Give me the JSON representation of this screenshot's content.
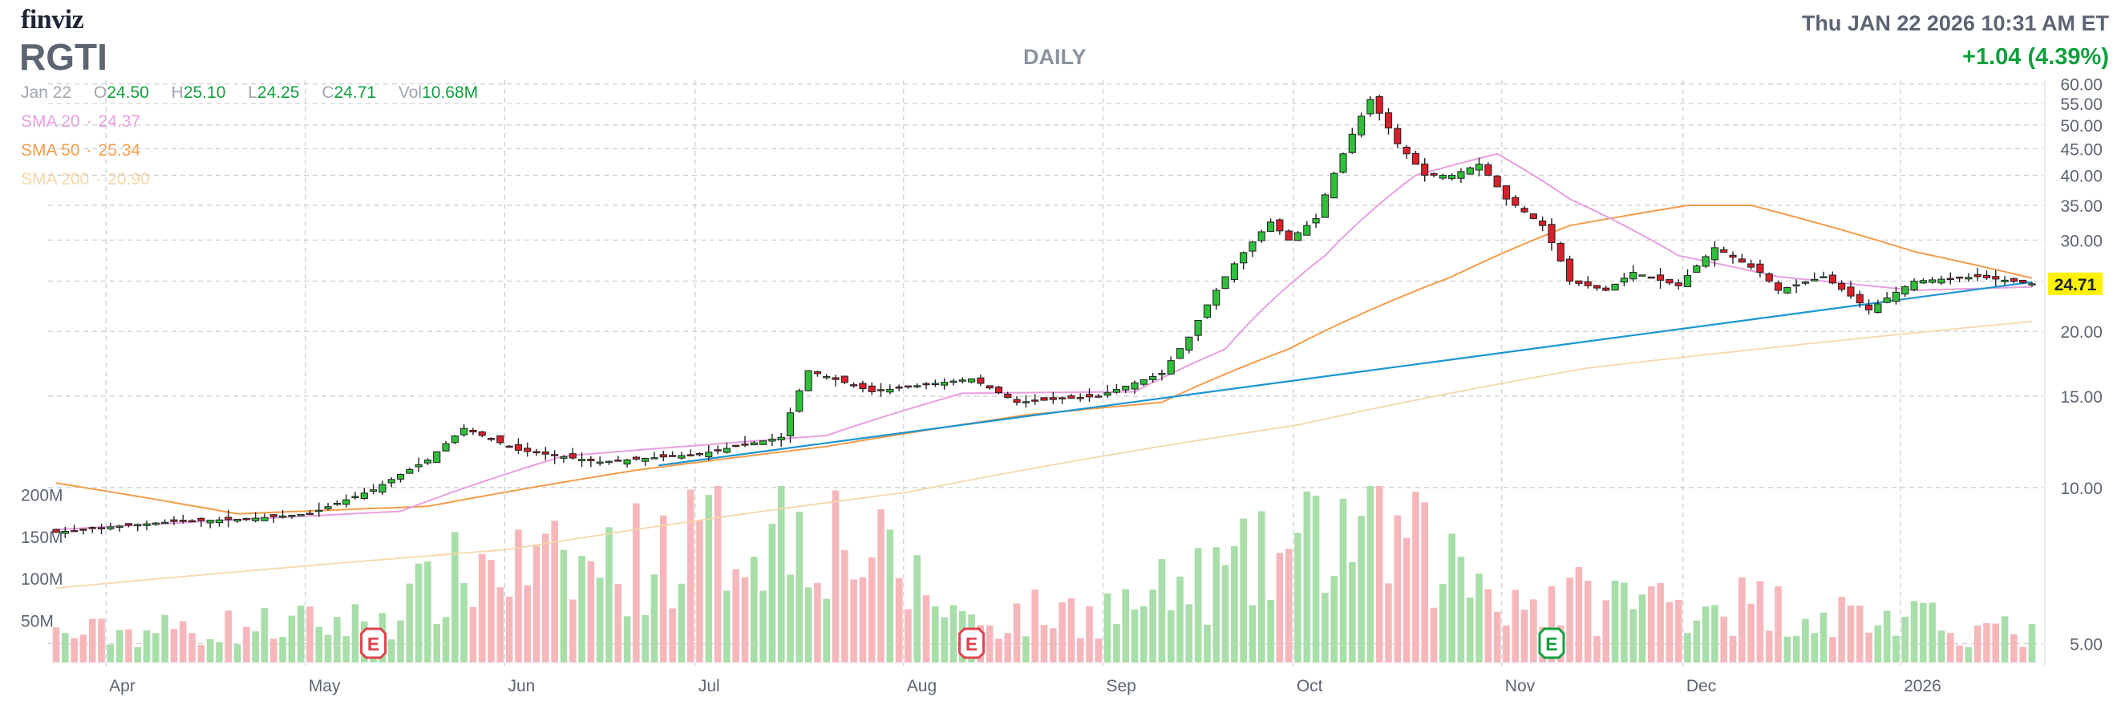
{
  "header": {
    "logo": "finviz",
    "ticker": "RGTI",
    "period": "DAILY",
    "datetime": "Thu JAN 22 2026 10:31 AM ET",
    "change": "+1.04 (4.39%)"
  },
  "quote": {
    "date": "Jan 22",
    "open_label": "O",
    "open": "24.50",
    "high_label": "H",
    "high": "25.10",
    "low_label": "L",
    "low": "24.25",
    "close_label": "C",
    "close": "24.71",
    "volume_label": "Vol",
    "volume": "10.68M"
  },
  "indicators": [
    {
      "name": "SMA 20",
      "value": "24.37",
      "color": "#e89fdf"
    },
    {
      "name": "SMA 50",
      "value": "25.34",
      "color": "#f39c4a"
    },
    {
      "name": "SMA 200",
      "value": "20.90",
      "color": "#f6d7a8"
    }
  ],
  "events": [
    {
      "label": "E",
      "date": "2025-05-12",
      "color": "#e0414c"
    },
    {
      "label": "E",
      "date": "2025-08-12",
      "color": "#e0414c"
    },
    {
      "label": "E",
      "date": "2025-11-10",
      "color": "#119f3e"
    }
  ],
  "chart_data": {
    "type": "candlestick",
    "scale": "log",
    "ylim": [
      4.6,
      61
    ],
    "y_ticks": [
      "60.00",
      "55.00",
      "50.00",
      "45.00",
      "40.00",
      "35.00",
      "30.00",
      "25.00",
      "20.00",
      "15.00",
      "10.00",
      "5.00"
    ],
    "volume_ticks": [
      "200M",
      "150M",
      "100M",
      "50M"
    ],
    "x_ticks": [
      "Apr",
      "May",
      "Jun",
      "Jul",
      "Aug",
      "Sep",
      "Oct",
      "Nov",
      "Dec",
      "2026"
    ],
    "last_price": "24.71",
    "colors": {
      "up": "#2fbf3a",
      "down": "#d7202a",
      "vol_up": "#a8dea9",
      "vol_down": "#f6b7bb",
      "trendline": "#1b95d1",
      "price_tag": "#fff200"
    },
    "close_anchors": [
      [
        "2025-03-24",
        8.2
      ],
      [
        "2025-04-01",
        8.4
      ],
      [
        "2025-04-10",
        8.6
      ],
      [
        "2025-04-22",
        8.7
      ],
      [
        "2025-05-01",
        8.9
      ],
      [
        "2025-05-12",
        9.9
      ],
      [
        "2025-05-20",
        11.3
      ],
      [
        "2025-05-26",
        13.0
      ],
      [
        "2025-06-03",
        11.8
      ],
      [
        "2025-06-16",
        11.2
      ],
      [
        "2025-07-01",
        11.6
      ],
      [
        "2025-07-14",
        12.5
      ],
      [
        "2025-07-17",
        16.8
      ],
      [
        "2025-07-28",
        15.3
      ],
      [
        "2025-08-05",
        15.8
      ],
      [
        "2025-08-12",
        16.2
      ],
      [
        "2025-08-19",
        14.6
      ],
      [
        "2025-09-01",
        15.0
      ],
      [
        "2025-09-10",
        16.6
      ],
      [
        "2025-09-15",
        19.5
      ],
      [
        "2025-09-22",
        27.0
      ],
      [
        "2025-09-26",
        32.5
      ],
      [
        "2025-09-30",
        30.0
      ],
      [
        "2025-10-03",
        33.0
      ],
      [
        "2025-10-08",
        44.0
      ],
      [
        "2025-10-13",
        56.0
      ],
      [
        "2025-10-16",
        46.0
      ],
      [
        "2025-10-21",
        40.0
      ],
      [
        "2025-10-24",
        40.0
      ],
      [
        "2025-10-29",
        42.0
      ],
      [
        "2025-11-03",
        36.0
      ],
      [
        "2025-11-07",
        32.0
      ],
      [
        "2025-11-12",
        25.0
      ],
      [
        "2025-11-18",
        24.0
      ],
      [
        "2025-11-21",
        26.0
      ],
      [
        "2025-11-28",
        24.5
      ],
      [
        "2025-12-04",
        29.0
      ],
      [
        "2025-12-11",
        26.0
      ],
      [
        "2025-12-15",
        24.0
      ],
      [
        "2025-12-22",
        25.5
      ],
      [
        "2025-12-29",
        22.0
      ],
      [
        "2026-01-05",
        25.0
      ],
      [
        "2026-01-14",
        25.5
      ],
      [
        "2026-01-22",
        24.71
      ]
    ],
    "volume_anchors": [
      [
        "2025-03-24",
        40
      ],
      [
        "2025-05-12",
        60
      ],
      [
        "2025-05-28",
        140
      ],
      [
        "2025-06-11",
        130
      ],
      [
        "2025-07-17",
        210
      ],
      [
        "2025-08-12",
        60
      ],
      [
        "2025-09-04",
        80
      ],
      [
        "2025-09-25",
        140
      ],
      [
        "2025-10-10",
        200
      ],
      [
        "2025-10-15",
        180
      ],
      [
        "2025-11-05",
        90
      ],
      [
        "2025-12-03",
        90
      ],
      [
        "2026-01-22",
        40
      ]
    ],
    "sma20_anchors": [
      [
        "2025-03-24",
        8.3
      ],
      [
        "2025-05-15",
        9.0
      ],
      [
        "2025-06-10",
        11.5
      ],
      [
        "2025-07-20",
        12.6
      ],
      [
        "2025-08-10",
        15.2
      ],
      [
        "2025-09-05",
        15.3
      ],
      [
        "2025-09-20",
        18.5
      ],
      [
        "2025-10-05",
        28.0
      ],
      [
        "2025-10-20",
        40.0
      ],
      [
        "2025-10-31",
        44.0
      ],
      [
        "2025-11-12",
        36.0
      ],
      [
        "2025-11-28",
        28.0
      ],
      [
        "2025-12-15",
        25.5
      ],
      [
        "2026-01-05",
        24.0
      ],
      [
        "2026-01-22",
        24.37
      ]
    ],
    "sma50_anchors": [
      [
        "2025-03-24",
        10.2
      ],
      [
        "2025-04-20",
        8.9
      ],
      [
        "2025-05-20",
        9.2
      ],
      [
        "2025-06-20",
        10.8
      ],
      [
        "2025-07-20",
        12.0
      ],
      [
        "2025-08-20",
        13.8
      ],
      [
        "2025-09-10",
        14.6
      ],
      [
        "2025-09-30",
        18.5
      ],
      [
        "2025-10-25",
        25.5
      ],
      [
        "2025-11-12",
        32.0
      ],
      [
        "2025-11-30",
        35.0
      ],
      [
        "2025-12-10",
        35.0
      ],
      [
        "2026-01-05",
        28.5
      ],
      [
        "2026-01-22",
        25.34
      ]
    ],
    "sma200_anchors": [
      [
        "2025-03-24",
        6.4
      ],
      [
        "2025-06-01",
        7.6
      ],
      [
        "2025-08-01",
        9.8
      ],
      [
        "2025-10-01",
        13.2
      ],
      [
        "2025-11-15",
        17.0
      ],
      [
        "2026-01-22",
        20.9
      ]
    ],
    "trendline": [
      [
        "2025-06-30",
        11.2
      ],
      [
        "2026-01-22",
        24.9
      ]
    ]
  }
}
